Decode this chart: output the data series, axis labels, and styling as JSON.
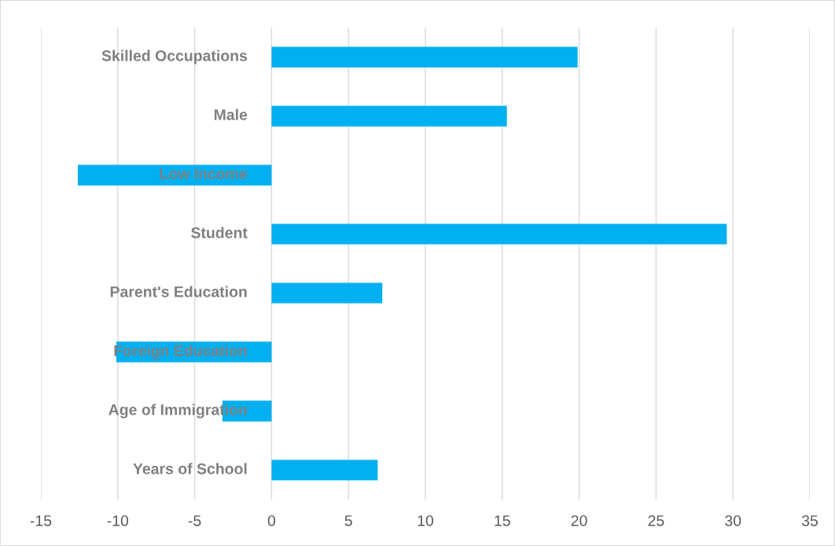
{
  "chart_data": {
    "type": "bar",
    "orientation": "horizontal",
    "categories": [
      "Skilled Occupations",
      "Male",
      "Low Income",
      "Student",
      "Parent's Education",
      "Foreign Education",
      "Age of Immigration",
      "Years of School"
    ],
    "values": [
      19.9,
      15.3,
      -12.6,
      29.6,
      7.2,
      -10.1,
      -3.2,
      6.9
    ],
    "color": "#00b0f0",
    "xlim": [
      -15,
      35
    ],
    "xticks": [
      -15,
      -10,
      -5,
      0,
      5,
      10,
      15,
      20,
      25,
      30,
      35
    ],
    "grid": "x"
  }
}
